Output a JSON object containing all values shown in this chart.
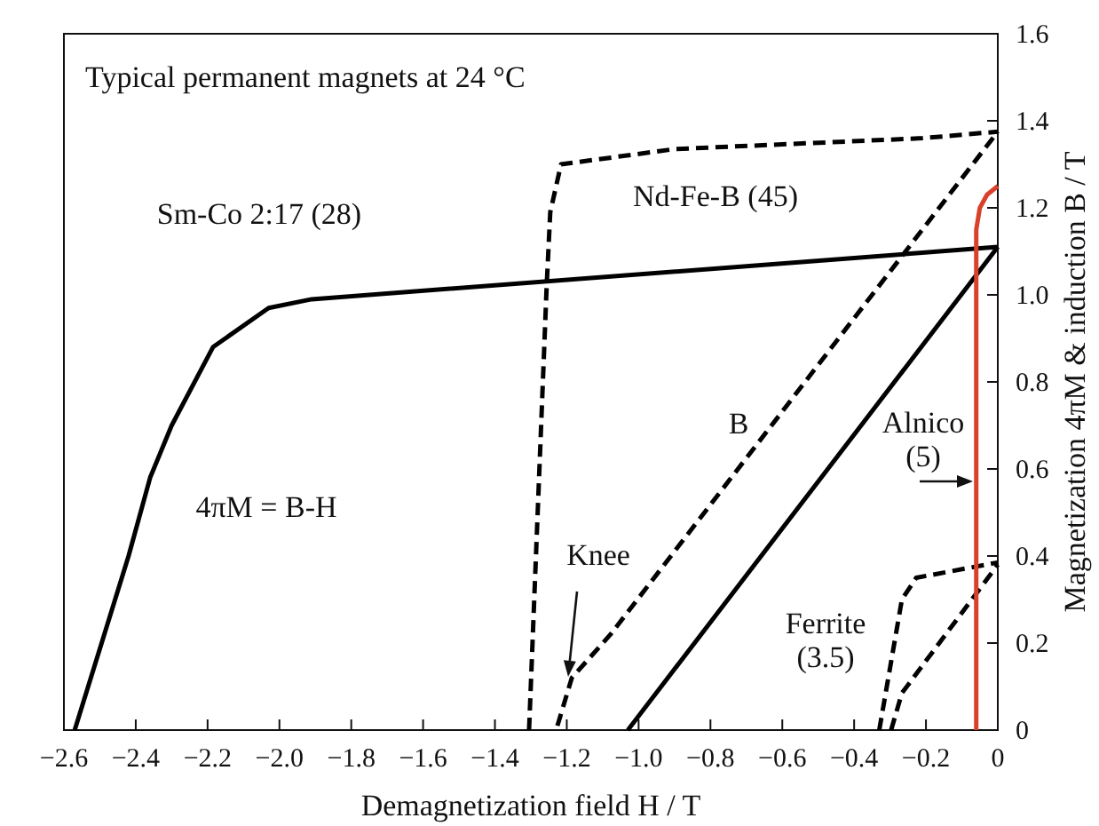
{
  "chart_data": {
    "type": "line",
    "title": "Typical permanent magnets at 24 °C",
    "xlabel": "Demagnetization field H / T",
    "ylabel": "Magnetization 4πM & induction B / T",
    "xlim": [
      -2.6,
      0
    ],
    "ylim": [
      0,
      1.6
    ],
    "xticks": [
      {
        "value": -2.6,
        "label": "−2.6"
      },
      {
        "value": -2.4,
        "label": "−2.4"
      },
      {
        "value": -2.2,
        "label": "−2.2"
      },
      {
        "value": -2,
        "label": "−2.0"
      },
      {
        "value": -1.8,
        "label": "−1.8"
      },
      {
        "value": -1.6,
        "label": "−1.6"
      },
      {
        "value": -1.4,
        "label": "−1.4"
      },
      {
        "value": -1.2,
        "label": "−1.2"
      },
      {
        "value": -1,
        "label": "−1.0"
      },
      {
        "value": -0.8,
        "label": "−0.8"
      },
      {
        "value": -0.6,
        "label": "−0.6"
      },
      {
        "value": -0.4,
        "label": "−0.4"
      },
      {
        "value": -0.2,
        "label": "−0.2"
      },
      0
    ],
    "yticks": [
      0,
      0.2,
      0.4,
      0.6,
      0.8,
      {
        "value": 1,
        "label": "1.0"
      },
      1.2,
      1.4,
      1.6
    ],
    "grid": false,
    "marker": "none",
    "series": [
      {
        "color": "#000000",
        "line_style": "solid",
        "x": [
          -2.57,
          -2.42,
          -2.36,
          -2.3,
          -2.185,
          -2.03,
          -1.91,
          0
        ],
        "values": [
          0,
          0.4,
          0.58,
          0.7,
          0.88,
          0.97,
          0.99,
          1.11
        ]
      },
      {
        "color": "#000000",
        "line_style": "solid",
        "x": [
          -1.03,
          0
        ],
        "values": [
          0,
          1.11
        ]
      },
      {
        "color": "#000000",
        "line_style": "dashed",
        "x": [
          -1.305,
          -1.256,
          -1.246,
          -1.216,
          -0.9,
          -0.21,
          0
        ],
        "values": [
          0,
          1.02,
          1.19,
          1.3,
          1.335,
          1.36,
          1.375
        ]
      },
      {
        "color": "#000000",
        "line_style": "dashed",
        "x": [
          -1.226,
          -1.186,
          -1.078,
          0
        ],
        "values": [
          0.01,
          0.12,
          0.22,
          1.375
        ]
      },
      {
        "color": "#000000",
        "line_style": "dashed",
        "x": [
          -0.33,
          -0.267,
          -0.227,
          0
        ],
        "values": [
          0,
          0.3,
          0.35,
          0.385
        ]
      },
      {
        "color": "#000000",
        "line_style": "dashed",
        "x": [
          -0.297,
          -0.267,
          0
        ],
        "values": [
          0,
          0.085,
          0.38
        ]
      },
      {
        "color": "#d9412b",
        "line_style": "solid",
        "x": [
          -0.06,
          -0.06,
          -0.05,
          -0.03,
          0
        ],
        "values": [
          0,
          1.15,
          1.2,
          1.23,
          1.25
        ]
      }
    ],
    "annotations": [
      "Sm-Co 2:17 (28)",
      "Nd-Fe-B (45)",
      "B",
      "Alnico\n(5)",
      "4πM = B-H",
      "Knee",
      "Ferrite\n(3.5)"
    ]
  }
}
